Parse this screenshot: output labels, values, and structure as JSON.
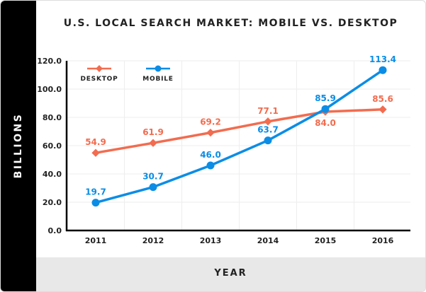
{
  "chart_data": {
    "type": "line",
    "title": "U.S. LOCAL SEARCH MARKET: MOBILE VS. DESKTOP",
    "xlabel": "YEAR",
    "ylabel": "BILLIONS",
    "categories": [
      "2011",
      "2012",
      "2013",
      "2014",
      "2015",
      "2016"
    ],
    "ylim": [
      0,
      120
    ],
    "yticks": [
      "0.0",
      "20.0",
      "40.0",
      "60.0",
      "80.0",
      "100.0",
      "120.0"
    ],
    "grid": true,
    "legend": "top-left",
    "series": [
      {
        "name": "DESKTOP",
        "color": "#f26c4f",
        "marker": "diamond",
        "values": [
          54.9,
          61.9,
          69.2,
          77.1,
          84.0,
          85.6
        ],
        "labels": [
          "54.9",
          "61.9",
          "69.2",
          "77.1",
          "84.0",
          "85.6"
        ]
      },
      {
        "name": "MOBILE",
        "color": "#0b8de6",
        "marker": "circle",
        "values": [
          19.7,
          30.7,
          46.0,
          63.7,
          85.9,
          113.4
        ],
        "labels": [
          "19.7",
          "30.7",
          "46.0",
          "63.7",
          "85.9",
          "113.4"
        ]
      }
    ]
  }
}
